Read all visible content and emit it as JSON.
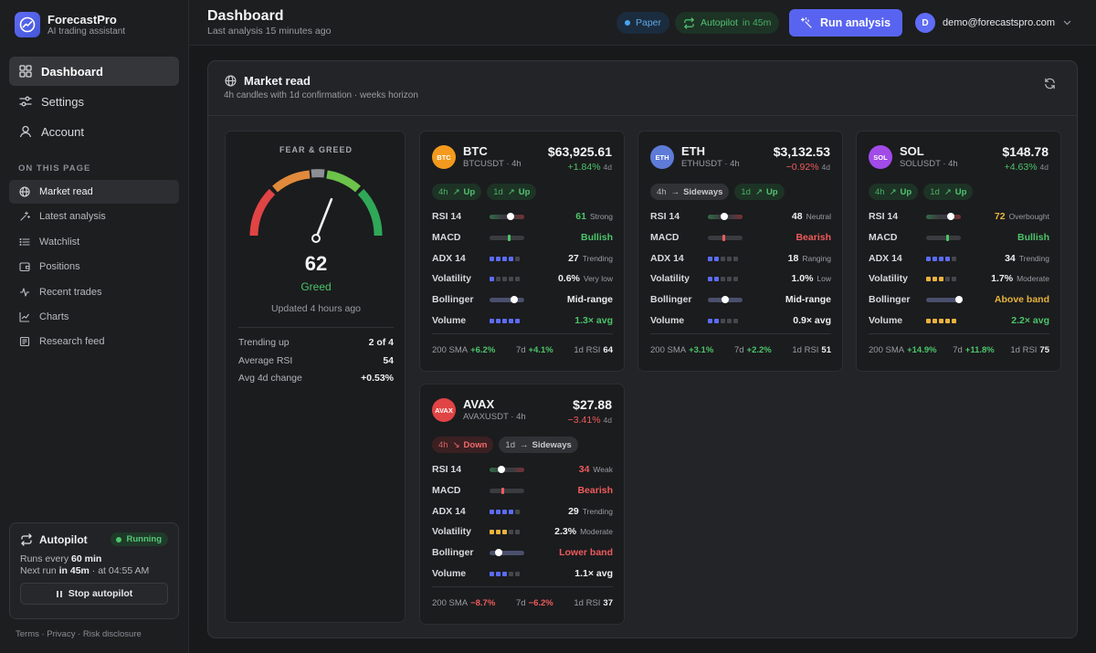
{
  "brand": {
    "name": "ForecastPro",
    "tagline": "AI trading assistant"
  },
  "nav": {
    "items": [
      {
        "label": "Dashboard",
        "icon": "grid-icon"
      },
      {
        "label": "Settings",
        "icon": "sliders-icon"
      },
      {
        "label": "Account",
        "icon": "user-icon"
      }
    ]
  },
  "section_label": "ON THIS PAGE",
  "subnav": [
    {
      "label": "Market read"
    },
    {
      "label": "Latest analysis"
    },
    {
      "label": "Watchlist"
    },
    {
      "label": "Positions"
    },
    {
      "label": "Recent trades"
    },
    {
      "label": "Charts"
    },
    {
      "label": "Research feed"
    }
  ],
  "autopilot": {
    "title": "Autopilot",
    "status": "Running",
    "runs_prefix": "Runs every ",
    "runs_value": "60 min",
    "next_prefix": "Next run ",
    "next_value": "in 45m",
    "next_suffix": " · at 04:55 AM",
    "button": "Stop autopilot"
  },
  "footer": "Terms · Privacy · Risk disclosure",
  "header": {
    "title": "Dashboard",
    "subtitle": "Last analysis 15 minutes ago",
    "paper": "Paper",
    "autopilot_label": "Autopilot",
    "autopilot_eta": "in 45m",
    "run_button": "Run analysis",
    "user_initial": "D",
    "user_email": "demo@forecastspro.com"
  },
  "market": {
    "title": "Market read",
    "subtitle": "4h candles with 1d confirmation · weeks horizon"
  },
  "fear_greed": {
    "label": "FEAR & GREED",
    "value": "62",
    "value_num": 62,
    "status": "Greed",
    "updated": "Updated 4 hours ago",
    "stats": [
      {
        "label": "Trending up",
        "value": "2 of 4"
      },
      {
        "label": "Average RSI",
        "value": "54"
      },
      {
        "label": "Avg 4d change",
        "value": "+0.53%"
      }
    ]
  },
  "coins": [
    {
      "symbol": "BTC",
      "pair": "BTCUSDT · 4h",
      "price": "$63,925.61",
      "change": "+1.84%",
      "change_tf": "4d",
      "icon_bg": "#f39a1e",
      "tags": [
        {
          "tf": "4h",
          "arrow": "↗",
          "dir": "Up",
          "kind": "up"
        },
        {
          "tf": "1d",
          "arrow": "↗",
          "dir": "Up",
          "kind": "up"
        }
      ],
      "rows": [
        {
          "label": "RSI 14",
          "viz": "slider",
          "pos": 0.61,
          "value": "61",
          "qual": "Strong",
          "color": "green",
          "qcolor": ""
        },
        {
          "label": "MACD",
          "viz": "tick",
          "pos": 0.55,
          "tick": "#4cc46a",
          "value": "Bullish",
          "qual": "",
          "color": "green"
        },
        {
          "label": "ADX 14",
          "viz": "dots",
          "filled": 4,
          "dotcolor": "#5b6cf5",
          "value": "27",
          "qual": "Trending",
          "color": ""
        },
        {
          "label": "Volatility",
          "viz": "dots",
          "filled": 1,
          "dotcolor": "#5b6cf5",
          "value": "0.6%",
          "qual": "Very low",
          "color": ""
        },
        {
          "label": "Bollinger",
          "viz": "band",
          "pos": 0.72,
          "value": "Mid-range",
          "qual": "",
          "color": ""
        },
        {
          "label": "Volume",
          "viz": "dots",
          "filled": 5,
          "dotcolor": "#5b6cf5",
          "value": "1.3× avg",
          "qual": "",
          "color": "green"
        }
      ],
      "foot": [
        {
          "label": "200 SMA",
          "value": "+6.2%",
          "color": "green"
        },
        {
          "label": "7d",
          "value": "+4.1%",
          "color": "green"
        },
        {
          "label": "1d RSI",
          "value": "64",
          "color": ""
        }
      ]
    },
    {
      "symbol": "ETH",
      "pair": "ETHUSDT · 4h",
      "price": "$3,132.53",
      "change": "−0.92%",
      "change_tf": "4d",
      "icon_bg": "#5e7bd8",
      "tags": [
        {
          "tf": "4h",
          "arrow": "→",
          "dir": "Sideways",
          "kind": "side"
        },
        {
          "tf": "1d",
          "arrow": "↗",
          "dir": "Up",
          "kind": "up"
        }
      ],
      "rows": [
        {
          "label": "RSI 14",
          "viz": "slider",
          "pos": 0.48,
          "value": "48",
          "qual": "Neutral",
          "color": ""
        },
        {
          "label": "MACD",
          "viz": "tick",
          "pos": 0.45,
          "tick": "#ef5b5b",
          "value": "Bearish",
          "qual": "",
          "color": "red"
        },
        {
          "label": "ADX 14",
          "viz": "dots",
          "filled": 2,
          "dotcolor": "#5b6cf5",
          "value": "18",
          "qual": "Ranging",
          "color": ""
        },
        {
          "label": "Volatility",
          "viz": "dots",
          "filled": 2,
          "dotcolor": "#5b6cf5",
          "value": "1.0%",
          "qual": "Low",
          "color": ""
        },
        {
          "label": "Bollinger",
          "viz": "band",
          "pos": 0.5,
          "value": "Mid-range",
          "qual": "",
          "color": ""
        },
        {
          "label": "Volume",
          "viz": "dots",
          "filled": 2,
          "dotcolor": "#5b6cf5",
          "value": "0.9× avg",
          "qual": "",
          "color": ""
        }
      ],
      "foot": [
        {
          "label": "200 SMA",
          "value": "+3.1%",
          "color": "green"
        },
        {
          "label": "7d",
          "value": "+2.2%",
          "color": "green"
        },
        {
          "label": "1d RSI",
          "value": "51",
          "color": ""
        }
      ]
    },
    {
      "symbol": "SOL",
      "pair": "SOLUSDT · 4h",
      "price": "$148.78",
      "change": "+4.63%",
      "change_tf": "4d",
      "icon_bg": "#a24be8",
      "tags": [
        {
          "tf": "4h",
          "arrow": "↗",
          "dir": "Up",
          "kind": "up"
        },
        {
          "tf": "1d",
          "arrow": "↗",
          "dir": "Up",
          "kind": "up"
        }
      ],
      "rows": [
        {
          "label": "RSI 14",
          "viz": "slider",
          "pos": 0.72,
          "value": "72",
          "qual": "Overbought",
          "color": "yellow"
        },
        {
          "label": "MACD",
          "viz": "tick",
          "pos": 0.6,
          "tick": "#4cc46a",
          "value": "Bullish",
          "qual": "",
          "color": "green"
        },
        {
          "label": "ADX 14",
          "viz": "dots",
          "filled": 4,
          "dotcolor": "#5b6cf5",
          "value": "34",
          "qual": "Trending",
          "color": ""
        },
        {
          "label": "Volatility",
          "viz": "dots",
          "filled": 3,
          "dotcolor": "#e8b33c",
          "value": "1.7%",
          "qual": "Moderate",
          "color": ""
        },
        {
          "label": "Bollinger",
          "viz": "band",
          "pos": 0.95,
          "value": "Above band",
          "qual": "",
          "color": "yellow"
        },
        {
          "label": "Volume",
          "viz": "dots",
          "filled": 5,
          "dotcolor": "#e8b33c",
          "value": "2.2× avg",
          "qual": "",
          "color": "green"
        }
      ],
      "foot": [
        {
          "label": "200 SMA",
          "value": "+14.9%",
          "color": "green"
        },
        {
          "label": "7d",
          "value": "+11.8%",
          "color": "green"
        },
        {
          "label": "1d RSI",
          "value": "75",
          "color": ""
        }
      ]
    },
    {
      "symbol": "AVAX",
      "pair": "AVAXUSDT · 4h",
      "price": "$27.88",
      "change": "−3.41%",
      "change_tf": "4d",
      "icon_bg": "#e04444",
      "tags": [
        {
          "tf": "4h",
          "arrow": "↘",
          "dir": "Down",
          "kind": "down"
        },
        {
          "tf": "1d",
          "arrow": "→",
          "dir": "Sideways",
          "kind": "side"
        }
      ],
      "rows": [
        {
          "label": "RSI 14",
          "viz": "slider",
          "pos": 0.34,
          "value": "34",
          "qual": "Weak",
          "color": "red"
        },
        {
          "label": "MACD",
          "viz": "tick",
          "pos": 0.38,
          "tick": "#ef5b5b",
          "value": "Bearish",
          "qual": "",
          "color": "red"
        },
        {
          "label": "ADX 14",
          "viz": "dots",
          "filled": 4,
          "dotcolor": "#5b6cf5",
          "value": "29",
          "qual": "Trending",
          "color": ""
        },
        {
          "label": "Volatility",
          "viz": "dots",
          "filled": 3,
          "dotcolor": "#e8b33c",
          "value": "2.3%",
          "qual": "Moderate",
          "color": ""
        },
        {
          "label": "Bollinger",
          "viz": "band",
          "pos": 0.25,
          "value": "Lower band",
          "qual": "",
          "color": "red"
        },
        {
          "label": "Volume",
          "viz": "dots",
          "filled": 3,
          "dotcolor": "#5b6cf5",
          "value": "1.1× avg",
          "qual": "",
          "color": ""
        }
      ],
      "foot": [
        {
          "label": "200 SMA",
          "value": "−8.7%",
          "color": "red"
        },
        {
          "label": "7d",
          "value": "−6.2%",
          "color": "red"
        },
        {
          "label": "1d RSI",
          "value": "37",
          "color": ""
        }
      ]
    }
  ]
}
